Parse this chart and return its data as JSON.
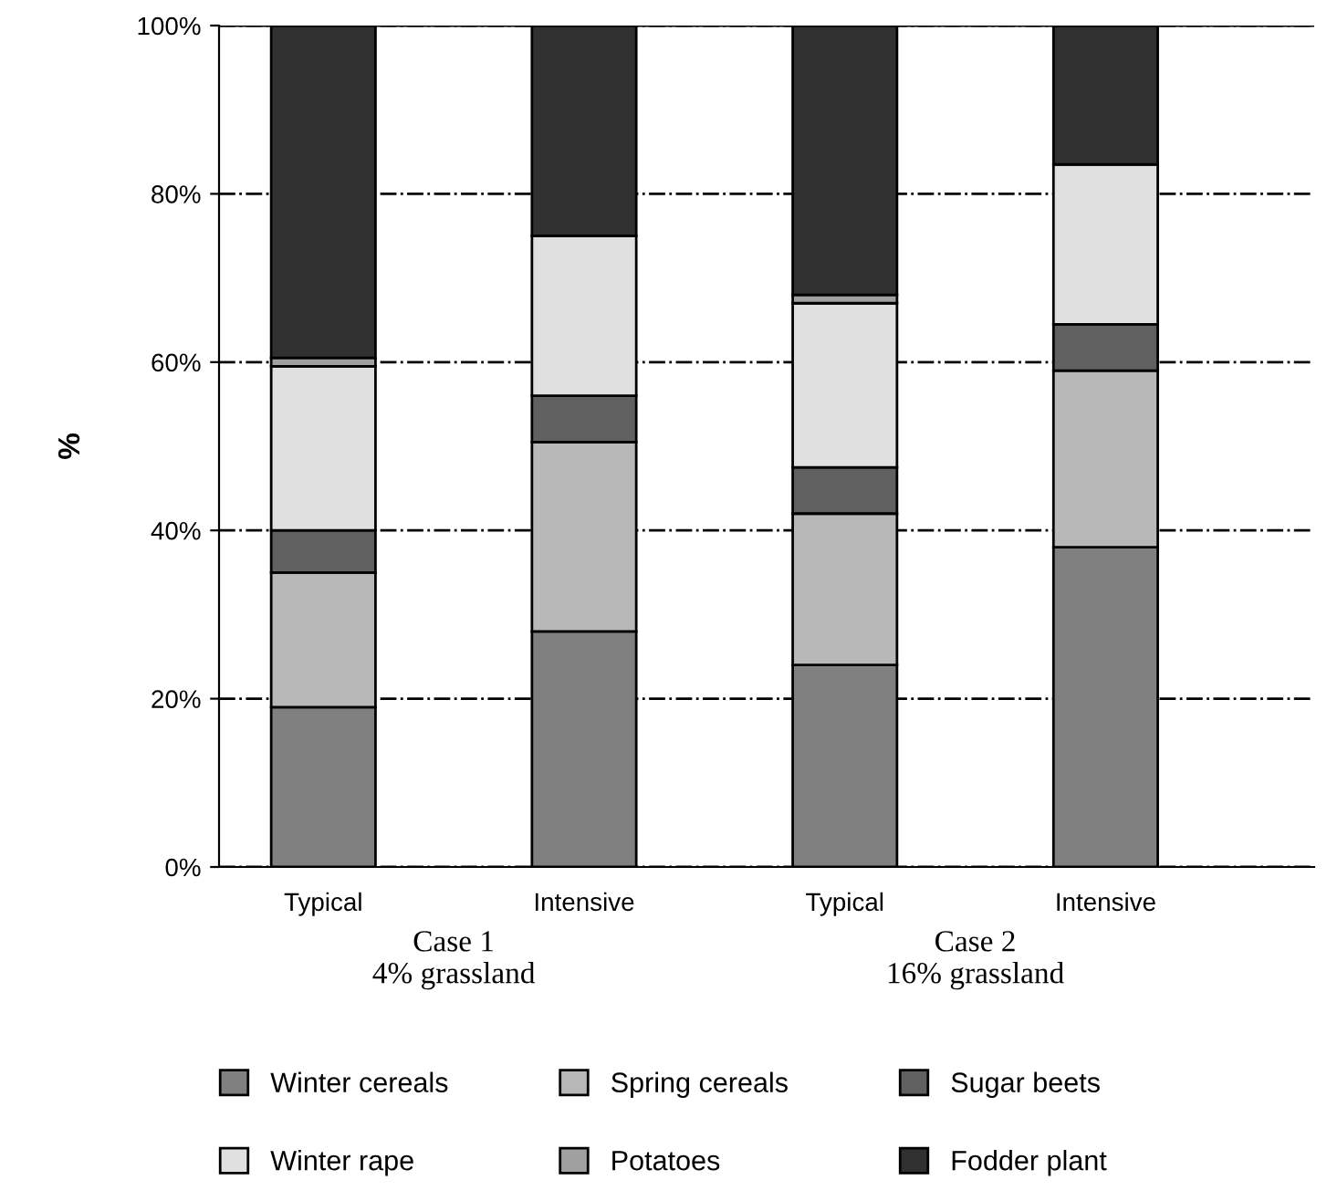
{
  "chart_data": {
    "type": "bar",
    "stacked": true,
    "ylabel": "%",
    "categories": [
      "Typical",
      "Intensive",
      "Typical",
      "Intensive"
    ],
    "series": [
      {
        "name": "Winter cereals",
        "color": "#808080",
        "values": [
          19,
          28,
          24,
          38
        ]
      },
      {
        "name": "Spring cereals",
        "color": "#b8b8b8",
        "values": [
          16,
          22.5,
          18,
          21
        ]
      },
      {
        "name": "Sugar beets",
        "color": "#606060",
        "values": [
          5,
          5.5,
          5.5,
          5.5
        ]
      },
      {
        "name": "Winter rape",
        "color": "#e0e0e0",
        "values": [
          19.5,
          19,
          19.5,
          19
        ]
      },
      {
        "name": "Potatoes",
        "color": "#a0a0a0",
        "values": [
          1,
          0,
          1,
          0
        ]
      },
      {
        "name": "Fodder plant",
        "color": "#303030",
        "values": [
          39.5,
          25,
          32,
          16.5
        ]
      }
    ],
    "ylim": [
      0,
      100
    ],
    "yticks": [
      {
        "value": 0,
        "label": "0%"
      },
      {
        "value": 20,
        "label": "20%"
      },
      {
        "value": 40,
        "label": "40%"
      },
      {
        "value": 60,
        "label": "60%"
      },
      {
        "value": 80,
        "label": "80%"
      },
      {
        "value": 100,
        "label": "100%"
      }
    ],
    "grid": "y",
    "legend": "bottom",
    "annotations": [
      "Case 1\n4% grassland",
      "Case 2\n16% grassland"
    ]
  }
}
